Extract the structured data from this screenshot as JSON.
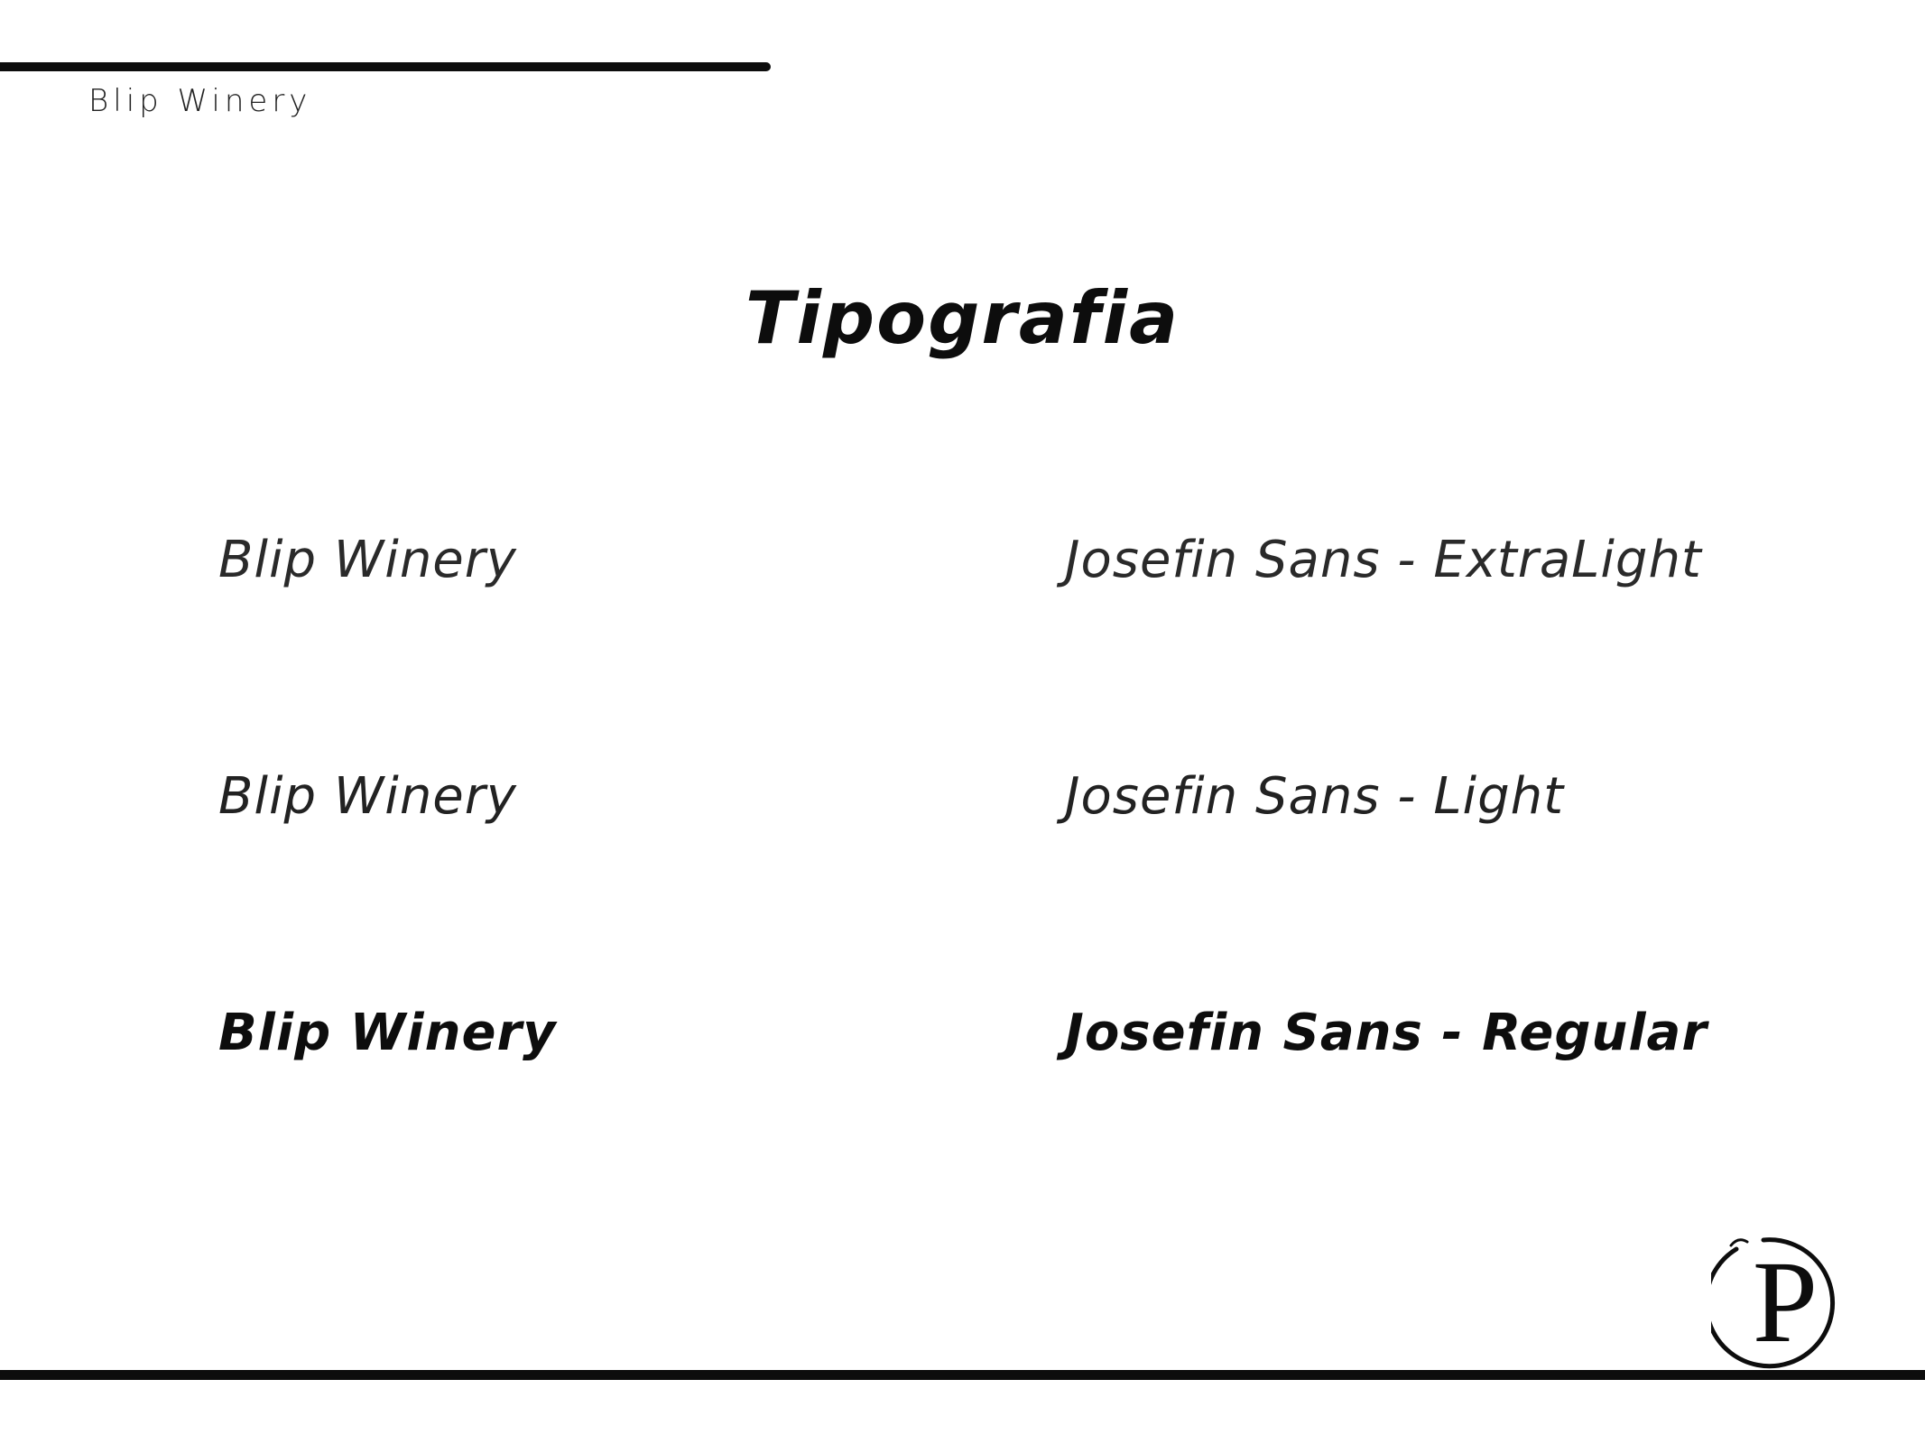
{
  "header": {
    "brand": "Blip Winery"
  },
  "title": "Tipografia",
  "samples": [
    {
      "text": "Blip Winery",
      "font_label": "Josefin Sans - ExtraLight"
    },
    {
      "text": "Blip Winery",
      "font_label": "Josefin Sans - Light"
    },
    {
      "text": "Blip Winery",
      "font_label": "Josefin Sans - Regular"
    }
  ],
  "logo": {
    "letter": "P",
    "icon": "monogram-p-logo"
  },
  "colors": {
    "ink": "#0d0d0d",
    "background": "#ffffff"
  }
}
